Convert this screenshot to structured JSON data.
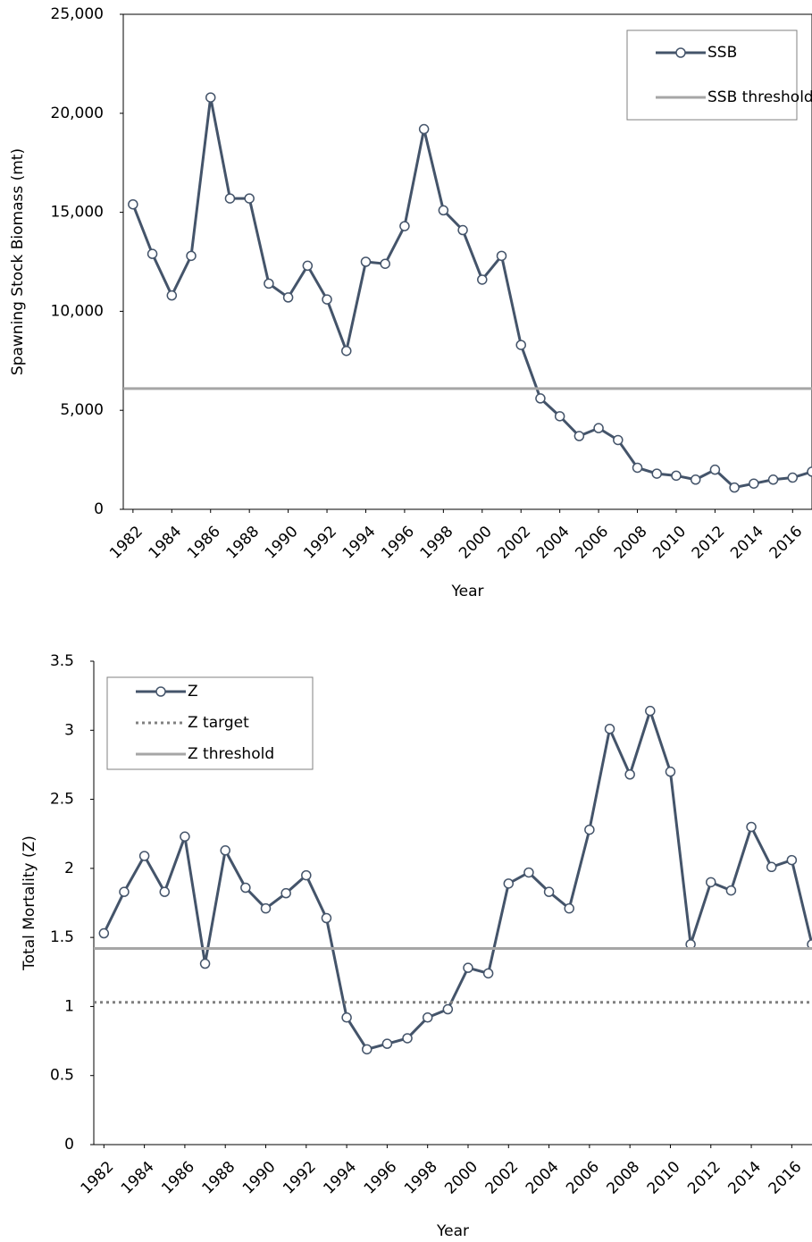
{
  "chart_data": [
    {
      "type": "line",
      "x_label": "Year",
      "y_label": "Spawning Stock Biomass (mt)",
      "legend": "top-right",
      "frame": "box",
      "x": [
        1982,
        1983,
        1984,
        1985,
        1986,
        1987,
        1988,
        1989,
        1990,
        1991,
        1992,
        1993,
        1994,
        1995,
        1996,
        1997,
        1998,
        1999,
        2000,
        2001,
        2002,
        2003,
        2004,
        2005,
        2006,
        2007,
        2008,
        2009,
        2010,
        2011,
        2012,
        2013,
        2014,
        2015,
        2016,
        2017
      ],
      "series": [
        {
          "name": "SSB",
          "color": "#44546a",
          "markers": true,
          "values": [
            15400,
            12900,
            10800,
            12800,
            20800,
            15700,
            15700,
            11400,
            10700,
            12300,
            10600,
            8000,
            12500,
            12400,
            14300,
            19200,
            15100,
            14100,
            11600,
            12800,
            8300,
            5600,
            4700,
            3700,
            4100,
            3500,
            2100,
            1800,
            1700,
            1500,
            2000,
            1100,
            1300,
            1500,
            1600,
            1900
          ]
        },
        {
          "name": "SSB threshold",
          "color": "#a6a6a6",
          "style": "solid",
          "value": 6100
        }
      ],
      "xlim": [
        1981.5,
        2017
      ],
      "xticks": [
        1982,
        1984,
        1986,
        1988,
        1990,
        1992,
        1994,
        1996,
        1998,
        2000,
        2002,
        2004,
        2006,
        2008,
        2010,
        2012,
        2014,
        2016
      ],
      "ylim": [
        0,
        25000
      ],
      "yticks": [
        0,
        {
          "value": 5000,
          "label": "5,000"
        },
        {
          "value": 10000,
          "label": "10,000"
        },
        {
          "value": 15000,
          "label": "15,000"
        },
        {
          "value": 20000,
          "label": "20,000"
        },
        {
          "value": 25000,
          "label": "25,000"
        }
      ]
    },
    {
      "type": "line",
      "x_label": "Year",
      "y_label": "Total Mortality (Z)",
      "legend": "top-left",
      "frame": "axes",
      "x": [
        1982,
        1983,
        1984,
        1985,
        1986,
        1987,
        1988,
        1989,
        1990,
        1991,
        1992,
        1993,
        1994,
        1995,
        1996,
        1997,
        1998,
        1999,
        2000,
        2001,
        2002,
        2003,
        2004,
        2005,
        2006,
        2007,
        2008,
        2009,
        2010,
        2011,
        2012,
        2013,
        2014,
        2015,
        2016,
        2017
      ],
      "series": [
        {
          "name": "Z",
          "color": "#44546a",
          "markers": true,
          "values": [
            1.53,
            1.83,
            2.09,
            1.83,
            2.23,
            1.31,
            2.13,
            1.86,
            1.71,
            1.82,
            1.95,
            1.64,
            0.92,
            0.69,
            0.73,
            0.77,
            0.92,
            0.98,
            1.28,
            1.24,
            1.89,
            1.97,
            1.83,
            1.71,
            2.28,
            3.01,
            2.68,
            3.14,
            2.7,
            1.45,
            1.9,
            1.84,
            2.3,
            2.01,
            2.06,
            1.45
          ]
        },
        {
          "name": "Z target",
          "color": "#808080",
          "style": "dotted",
          "value": 1.03
        },
        {
          "name": "Z threshold",
          "color": "#a6a6a6",
          "style": "solid",
          "value": 1.42
        }
      ],
      "xlim": [
        1981.5,
        2017
      ],
      "xticks": [
        1982,
        1984,
        1986,
        1988,
        1990,
        1992,
        1994,
        1996,
        1998,
        2000,
        2002,
        2004,
        2006,
        2008,
        2010,
        2012,
        2014,
        2016
      ],
      "ylim": [
        0,
        3.5
      ],
      "yticks": [
        0,
        0.5,
        1,
        1.5,
        2,
        2.5,
        3,
        3.5
      ]
    }
  ]
}
